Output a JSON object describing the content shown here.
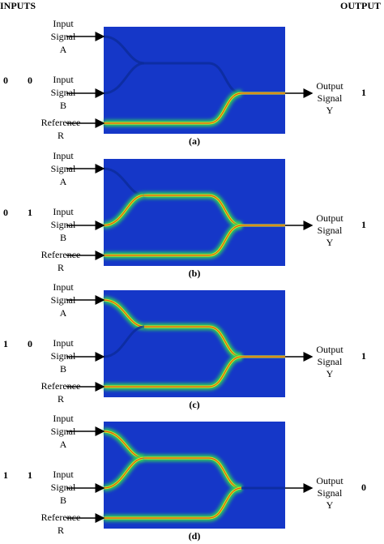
{
  "header": {
    "inputs": "INPUTS",
    "output": "OUTPUT"
  },
  "panels": [
    {
      "input_a": "0",
      "input_b": "0",
      "output": "1",
      "caption": "(a)"
    },
    {
      "input_a": "0",
      "input_b": "1",
      "output": "1",
      "caption": "(b)"
    },
    {
      "input_a": "1",
      "input_b": "0",
      "output": "1",
      "caption": "(c)"
    },
    {
      "input_a": "1",
      "input_b": "1",
      "output": "0",
      "caption": "(d)"
    }
  ],
  "labels": {
    "signal_a": [
      "Input",
      "Signal",
      "A"
    ],
    "signal_b": [
      "Input",
      "Signal",
      "B"
    ],
    "reference": [
      "Reference",
      "R"
    ],
    "output": [
      "Output",
      "Signal",
      "Y"
    ]
  }
}
